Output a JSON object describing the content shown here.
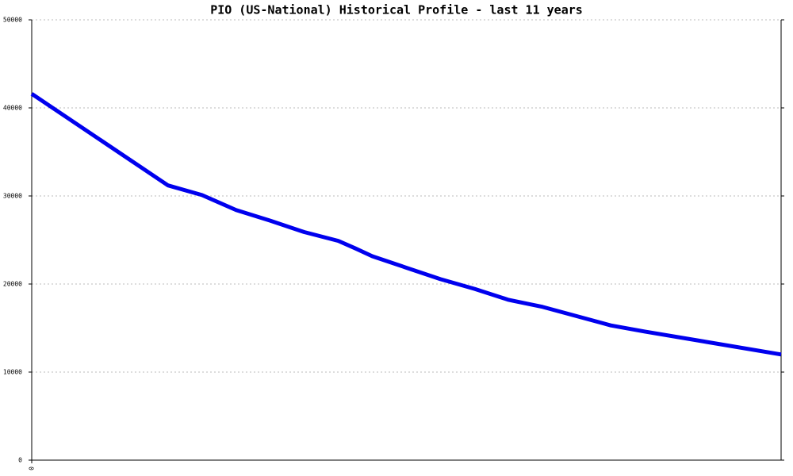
{
  "chart_data": {
    "type": "line",
    "title": "PIO (US-National) Historical Profile - last 11 years",
    "x": [
      0,
      4,
      5,
      6,
      7,
      8,
      9,
      9.5,
      10,
      12,
      13,
      14,
      15,
      17,
      18,
      20,
      22
    ],
    "series": [
      {
        "name": "PIO",
        "color": "#0000ee",
        "values": [
          41600,
          31200,
          30100,
          28400,
          27200,
          25900,
          24900,
          24050,
          23150,
          20550,
          19450,
          18200,
          17400,
          15300,
          14600,
          13300,
          12000
        ]
      }
    ],
    "xlim": [
      0,
      22
    ],
    "xticks": [
      0
    ],
    "ylim": [
      0,
      50000
    ],
    "yticks": [
      0,
      10000,
      20000,
      30000,
      40000,
      50000
    ],
    "grid": true
  }
}
